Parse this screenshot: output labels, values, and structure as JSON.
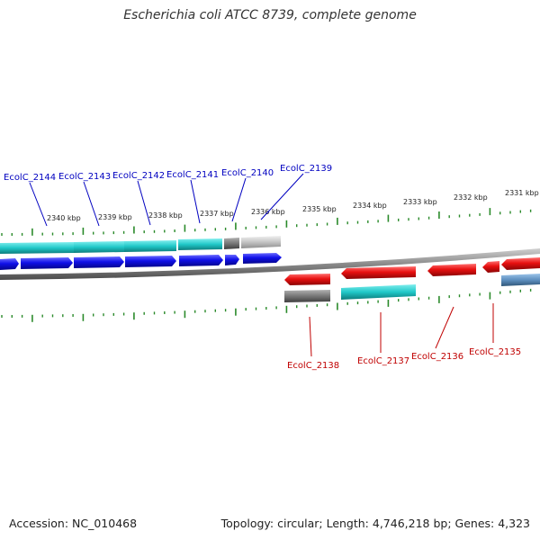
{
  "title": "Escherichia coli ATCC 8739, complete genome",
  "footer": {
    "accession": "Accession: NC_010468",
    "topology": "Topology: circular; Length: 4,746,218 bp; Genes: 4,323"
  },
  "colors": {
    "forward_cds": "#1010e8",
    "reverse_cds": "#e81010",
    "forward_label": "#0000c0",
    "reverse_label": "#c00000",
    "cyan_feature": "#20c8c8",
    "grey_feature": "#808080",
    "light_grey_feature": "#c4c4c4",
    "steel_feature": "#5e8fbf",
    "tick": "#2a8a2a",
    "backbone": "#8a8a8a"
  },
  "scale": {
    "unit": "kbp",
    "ticks": [
      "2340 kbp",
      "2339 kbp",
      "2338 kbp",
      "2337 kbp",
      "2336 kbp",
      "2335 kbp",
      "2334 kbp",
      "2333 kbp",
      "2332 kbp",
      "2331 kbp"
    ]
  },
  "forward_genes": [
    "EcolC_2144",
    "EcolC_2143",
    "EcolC_2142",
    "EcolC_2141",
    "EcolC_2140",
    "EcolC_2139"
  ],
  "reverse_genes": [
    "EcolC_2138",
    "EcolC_2137",
    "EcolC_2136",
    "EcolC_2135"
  ]
}
